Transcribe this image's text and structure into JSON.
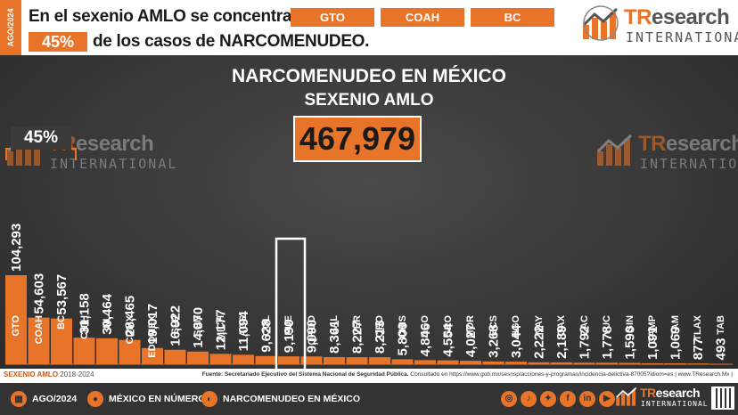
{
  "header": {
    "date_strip": "AGO/2024",
    "headline_part1": "En el sexenio AMLO se concentran en",
    "states": [
      "GTO",
      "COAH",
      "BC"
    ],
    "percent": "45%",
    "headline_part2": "de los casos de NARCOMENUDEO."
  },
  "logo": {
    "title_tr": "TR",
    "title_rest": "esearch",
    "subtitle": "INTERNATIONAL"
  },
  "chart_data": {
    "type": "bar",
    "title": "NARCOMENUDEO EN MÉXICO",
    "subtitle": "SEXENIO AMLO",
    "total": "467,979",
    "bracket_label": "45%",
    "categories": [
      "GTO",
      "COAH",
      "BC",
      "CHIH",
      "NL",
      "CDMX",
      "EDOMEX",
      "SLP",
      "SON",
      "MICH",
      "AGS",
      "COL",
      "PUE",
      "QROO",
      "JAL",
      "VER",
      "QRO",
      "CHIS",
      "DGO",
      "GRO",
      "MOR",
      "BCS",
      "HGO",
      "NAY",
      "OAX",
      "ZAC",
      "YUC",
      "SIN",
      "CAMP",
      "TAM",
      "TLAX",
      "TAB"
    ],
    "values": [
      104293,
      54603,
      53567,
      31158,
      30464,
      28465,
      19017,
      16922,
      14870,
      12177,
      11094,
      9628,
      9190,
      9090,
      8361,
      8227,
      8213,
      5800,
      4846,
      4554,
      4027,
      3268,
      3044,
      2222,
      2189,
      1792,
      1778,
      1590,
      1091,
      1069,
      877,
      493
    ],
    "value_labels": [
      "104,293",
      "54,603",
      "53,567",
      "31,158",
      "30,464",
      "28,465",
      "19,017",
      "16,922",
      "14,870",
      "12,177",
      "11,094",
      "9,628",
      "9,190",
      "9,090",
      "8,361",
      "8,227",
      "8,213",
      "5,800",
      "4,846",
      "4,554",
      "4,027",
      "3,268",
      "3,044",
      "2,222",
      "2,189",
      "1,792",
      "1,778",
      "1,590",
      "1,091",
      "1,069",
      "877",
      "493"
    ],
    "highlighted_category": "PUE",
    "bar_color": "#e8742a",
    "grid": false
  },
  "source": {
    "sexenio_label": "SEXENIO AMLO",
    "years": "2018-2024",
    "text_bold": "Fuente: Secretariado Ejecutivo del Sistema Nacional de Seguridad Pública.",
    "text_rest": "Consultado en https://www.gob.mx/sesnsp/acciones-y-programas/incidencia-delictiva-87005?idiom=es | www.TResearch.Mx |"
  },
  "footer": {
    "date": "AGO/2024",
    "mexico": "MÉXICO EN NÚMEROS",
    "narco": "NARCOMENUDEO EN MÉXICO",
    "social_icons": [
      "instagram-icon",
      "tiktok-icon",
      "twitter-icon",
      "facebook-icon",
      "linkedin-icon",
      "youtube-icon"
    ]
  },
  "colors": {
    "accent": "#e8742a",
    "panel": "#3a3a3a"
  }
}
